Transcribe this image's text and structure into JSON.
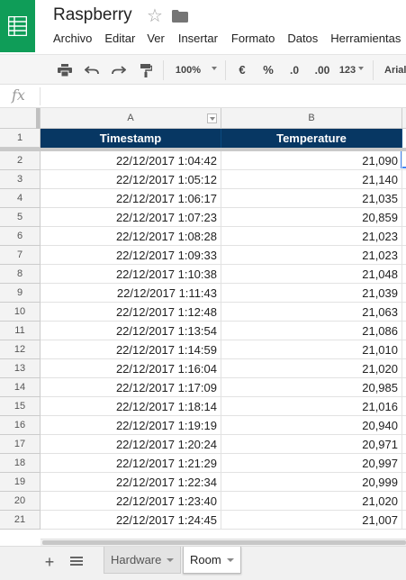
{
  "app": {
    "title": "Raspberry",
    "logo_color": "#0f9d58",
    "star_icon": "star-outline-icon",
    "folder_icon": "folder-icon"
  },
  "menu": {
    "items": [
      "Archivo",
      "Editar",
      "Ver",
      "Insertar",
      "Formato",
      "Datos",
      "Herramientas"
    ]
  },
  "toolbar": {
    "print_icon": "print-icon",
    "undo_icon": "undo-icon",
    "redo_icon": "redo-icon",
    "paint_format_icon": "paint-format-icon",
    "zoom": "100%",
    "currency": "€",
    "percent": "%",
    "decrease_decimals": ".0",
    "increase_decimals": ".00",
    "number_format": "123",
    "font": "Arial"
  },
  "formula_bar": {
    "fx_label": "fx",
    "value": ""
  },
  "grid": {
    "columns": [
      "A",
      "B"
    ],
    "header_fill": "#073763",
    "header_row": {
      "number": "1",
      "cells": [
        "Timestamp",
        "Temperature"
      ]
    },
    "rows": [
      {
        "number": "2",
        "timestamp": "22/12/2017 1:04:42",
        "temperature": "21,090"
      },
      {
        "number": "3",
        "timestamp": "22/12/2017 1:05:12",
        "temperature": "21,140"
      },
      {
        "number": "4",
        "timestamp": "22/12/2017 1:06:17",
        "temperature": "21,035"
      },
      {
        "number": "5",
        "timestamp": "22/12/2017 1:07:23",
        "temperature": "20,859"
      },
      {
        "number": "6",
        "timestamp": "22/12/2017 1:08:28",
        "temperature": "21,023"
      },
      {
        "number": "7",
        "timestamp": "22/12/2017 1:09:33",
        "temperature": "21,023"
      },
      {
        "number": "8",
        "timestamp": "22/12/2017 1:10:38",
        "temperature": "21,048"
      },
      {
        "number": "9",
        "timestamp": "22/12/2017 1:11:43",
        "temperature": "21,039"
      },
      {
        "number": "10",
        "timestamp": "22/12/2017 1:12:48",
        "temperature": "21,063"
      },
      {
        "number": "11",
        "timestamp": "22/12/2017 1:13:54",
        "temperature": "21,086"
      },
      {
        "number": "12",
        "timestamp": "22/12/2017 1:14:59",
        "temperature": "21,010"
      },
      {
        "number": "13",
        "timestamp": "22/12/2017 1:16:04",
        "temperature": "21,020"
      },
      {
        "number": "14",
        "timestamp": "22/12/2017 1:17:09",
        "temperature": "20,985"
      },
      {
        "number": "15",
        "timestamp": "22/12/2017 1:18:14",
        "temperature": "21,016"
      },
      {
        "number": "16",
        "timestamp": "22/12/2017 1:19:19",
        "temperature": "20,940"
      },
      {
        "number": "17",
        "timestamp": "22/12/2017 1:20:24",
        "temperature": "20,971"
      },
      {
        "number": "18",
        "timestamp": "22/12/2017 1:21:29",
        "temperature": "20,997"
      },
      {
        "number": "19",
        "timestamp": "22/12/2017 1:22:34",
        "temperature": "20,999"
      },
      {
        "number": "20",
        "timestamp": "22/12/2017 1:23:40",
        "temperature": "21,020"
      },
      {
        "number": "21",
        "timestamp": "22/12/2017 1:24:45",
        "temperature": "21,007"
      }
    ]
  },
  "sheets": {
    "add_icon": "plus-icon",
    "list_icon": "sheet-list-icon",
    "tabs": [
      "Hardware",
      "Room"
    ],
    "active": "Room"
  }
}
